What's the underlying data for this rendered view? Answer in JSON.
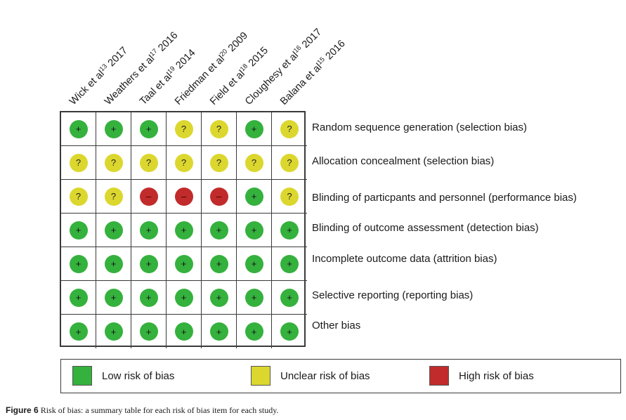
{
  "figure": {
    "studies": [
      {
        "name": "Wick et al",
        "ref": "13",
        "year": "2017"
      },
      {
        "name": "Weathers et al",
        "ref": "17",
        "year": "2016"
      },
      {
        "name": "Taal et al",
        "ref": "19",
        "year": "2014"
      },
      {
        "name": "Friedman et al",
        "ref": "20",
        "year": "2009"
      },
      {
        "name": "Field et al",
        "ref": "18",
        "year": "2015"
      },
      {
        "name": "Cloughesy et al",
        "ref": "16",
        "year": "2017"
      },
      {
        "name": "Balana et al",
        "ref": "15",
        "year": "2016"
      }
    ],
    "rows": [
      {
        "label": "Random sequence generation (selection bias)",
        "ratings": [
          "low",
          "low",
          "low",
          "unclear",
          "unclear",
          "low",
          "unclear"
        ]
      },
      {
        "label": "Allocation concealment (selection bias)",
        "ratings": [
          "unclear",
          "unclear",
          "unclear",
          "unclear",
          "unclear",
          "unclear",
          "unclear"
        ]
      },
      {
        "label": "Blinding of particpants and personnel (performance bias)",
        "ratings": [
          "unclear",
          "unclear",
          "high",
          "high",
          "high",
          "low",
          "unclear"
        ]
      },
      {
        "label": "Blinding of outcome assessment (detection bias)",
        "ratings": [
          "low",
          "low",
          "low",
          "low",
          "low",
          "low",
          "low"
        ]
      },
      {
        "label": "Incomplete outcome data (attrition bias)",
        "ratings": [
          "low",
          "low",
          "low",
          "low",
          "low",
          "low",
          "low"
        ]
      },
      {
        "label": "Selective reporting (reporting bias)",
        "ratings": [
          "low",
          "low",
          "low",
          "low",
          "low",
          "low",
          "low"
        ]
      },
      {
        "label": "Other bias",
        "ratings": [
          "low",
          "low",
          "low",
          "low",
          "low",
          "low",
          "low"
        ]
      }
    ],
    "symbols": {
      "low": "+",
      "unclear": "?",
      "high": "–"
    },
    "colors": {
      "low": "#35b13d",
      "unclear": "#dcd72e",
      "high": "#c12b2b"
    }
  },
  "legend": {
    "low": "Low risk of bias",
    "unclear": "Unclear risk of bias",
    "high": "High risk of bias"
  },
  "caption": {
    "label": "Figure 6",
    "text": " Risk of bias: a summary table for each risk of bias item for each study."
  }
}
